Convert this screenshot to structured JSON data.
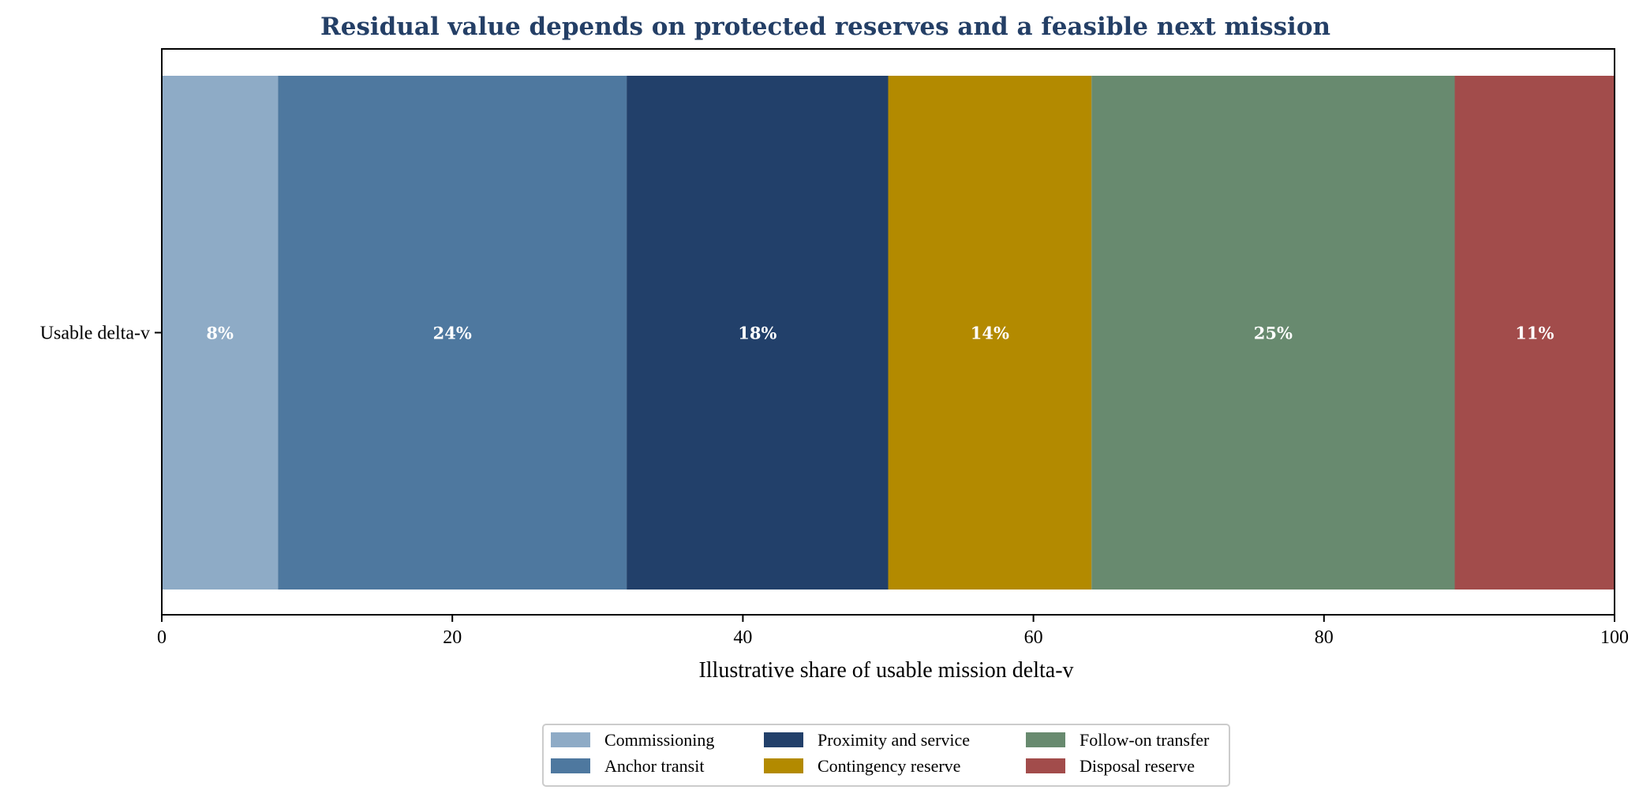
{
  "chart_data": {
    "type": "bar",
    "orientation": "horizontal",
    "stacked": true,
    "title": "Residual value depends on protected reserves and a feasible next mission",
    "title_color": "#243f66",
    "xlabel": "Illustrative share of usable mission delta-v",
    "ylabel": "",
    "categories": [
      "Usable delta-v"
    ],
    "xlim": [
      0,
      100
    ],
    "xticks": [
      0,
      20,
      40,
      60,
      80,
      100
    ],
    "xtick_labels": [
      "0",
      "20",
      "40",
      "60",
      "80",
      "100"
    ],
    "grid": false,
    "legend_position": "bottom-center",
    "legend_columns": 3,
    "series": [
      {
        "name": "Commissioning",
        "values": [
          8
        ],
        "label": "8%",
        "color": "#8eabc6"
      },
      {
        "name": "Anchor transit",
        "values": [
          24
        ],
        "label": "24%",
        "color": "#4e789f"
      },
      {
        "name": "Proximity and service",
        "values": [
          18
        ],
        "label": "18%",
        "color": "#22406a"
      },
      {
        "name": "Contingency reserve",
        "values": [
          14
        ],
        "label": "14%",
        "color": "#b38a00"
      },
      {
        "name": "Follow-on transfer",
        "values": [
          25
        ],
        "label": "25%",
        "color": "#688a6f"
      },
      {
        "name": "Disposal reserve",
        "values": [
          11
        ],
        "label": "11%",
        "color": "#a24c4b"
      }
    ]
  }
}
